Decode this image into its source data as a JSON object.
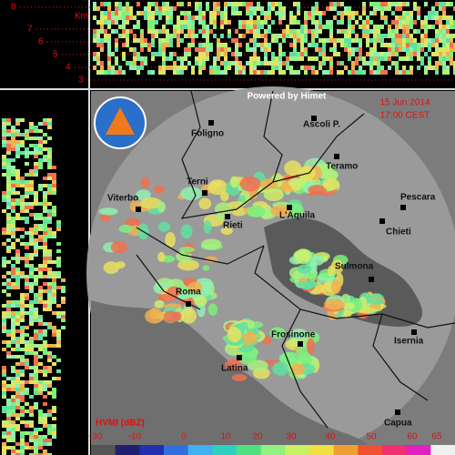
{
  "height_scale": {
    "unit": "Km",
    "levels": [
      "8",
      "7",
      "6",
      "5",
      "4",
      "3"
    ]
  },
  "map": {
    "credit": "Powered by Himet",
    "date": "15 Jun 2014",
    "time": "17:00 CEST",
    "cities": [
      "Foligno",
      "Ascoli P.",
      "Teramo",
      "Terni",
      "Rieti",
      "L'Aquila",
      "Pescara",
      "Viterbo",
      "Chieti",
      "Sulmona",
      "Roma",
      "Frosinone",
      "Isernia",
      "Latina",
      "Capua"
    ]
  },
  "legend": {
    "title": "HVMI (dBZ)",
    "ticks": [
      "-30",
      "-10",
      "0",
      "10",
      "20",
      "30",
      "40",
      "50",
      "60",
      "65"
    ]
  }
}
